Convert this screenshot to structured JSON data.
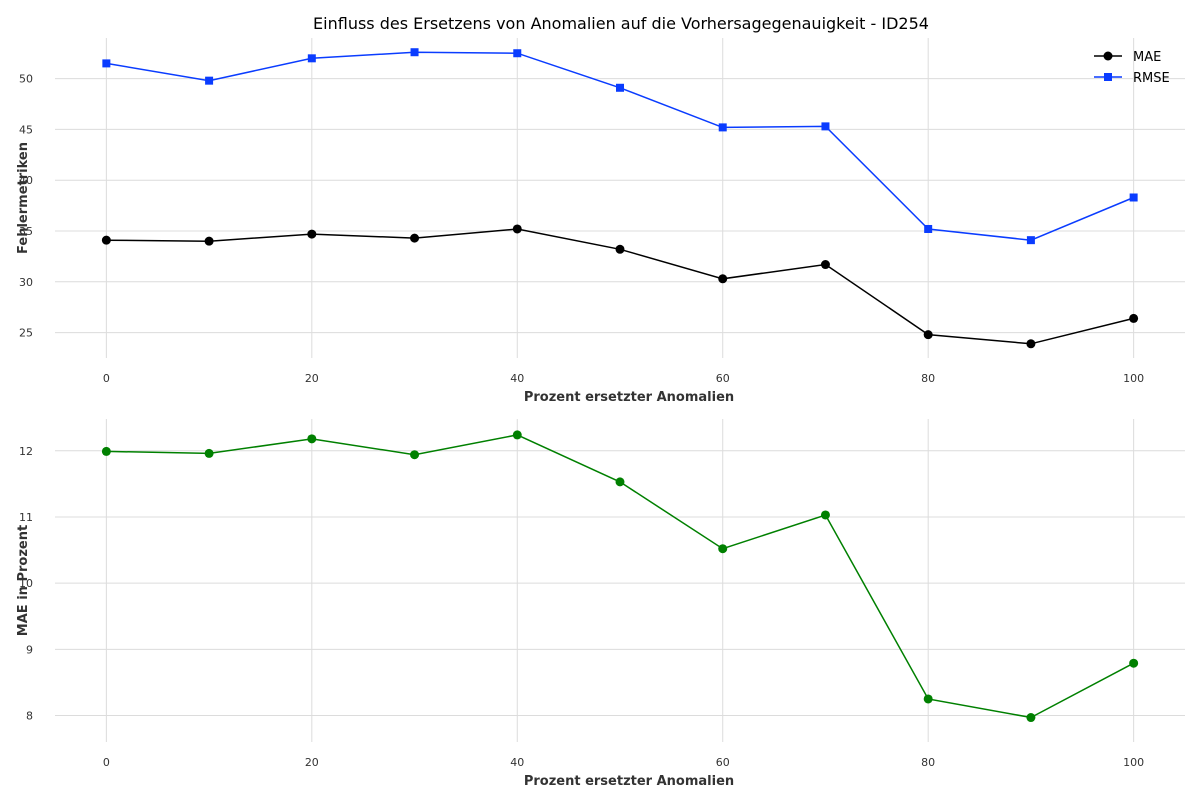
{
  "title": "Einfluss des Ersetzens von Anomalien auf die Vorhersagegenauigkeit - ID254",
  "chart_data": [
    {
      "type": "line",
      "xlabel": "Prozent ersetzter Anomalien",
      "ylabel": "Fehlermetriken",
      "xlim": [
        -5,
        105
      ],
      "ylim": [
        22.5,
        54
      ],
      "xticks": [
        0,
        20,
        40,
        60,
        80,
        100
      ],
      "yticks": [
        25,
        30,
        35,
        40,
        45,
        50
      ],
      "grid": true,
      "legend_position": "top-right",
      "x": [
        0,
        10,
        20,
        30,
        40,
        50,
        60,
        70,
        80,
        90,
        100
      ],
      "series": [
        {
          "name": "MAE",
          "color": "#000000",
          "marker": "circle",
          "values": [
            34.1,
            34.0,
            34.7,
            34.3,
            35.2,
            33.2,
            30.3,
            31.7,
            24.8,
            23.9,
            26.4
          ]
        },
        {
          "name": "RMSE",
          "color": "#0a3cff",
          "marker": "square",
          "values": [
            51.5,
            49.8,
            52.0,
            52.6,
            52.5,
            49.1,
            45.2,
            45.3,
            35.2,
            34.1,
            38.3
          ]
        }
      ]
    },
    {
      "type": "line",
      "xlabel": "Prozent ersetzter Anomalien",
      "ylabel": "MAE in Prozent",
      "xlim": [
        -5,
        105
      ],
      "ylim": [
        7.6,
        12.48
      ],
      "xticks": [
        0,
        20,
        40,
        60,
        80,
        100
      ],
      "yticks": [
        8,
        9,
        10,
        11,
        12
      ],
      "grid": true,
      "x": [
        0,
        10,
        20,
        30,
        40,
        50,
        60,
        70,
        80,
        90,
        100
      ],
      "series": [
        {
          "color": "#008000",
          "marker": "circle",
          "values": [
            11.99,
            11.96,
            12.18,
            11.94,
            12.24,
            11.53,
            10.52,
            11.03,
            8.25,
            7.97,
            8.79
          ]
        }
      ]
    }
  ]
}
